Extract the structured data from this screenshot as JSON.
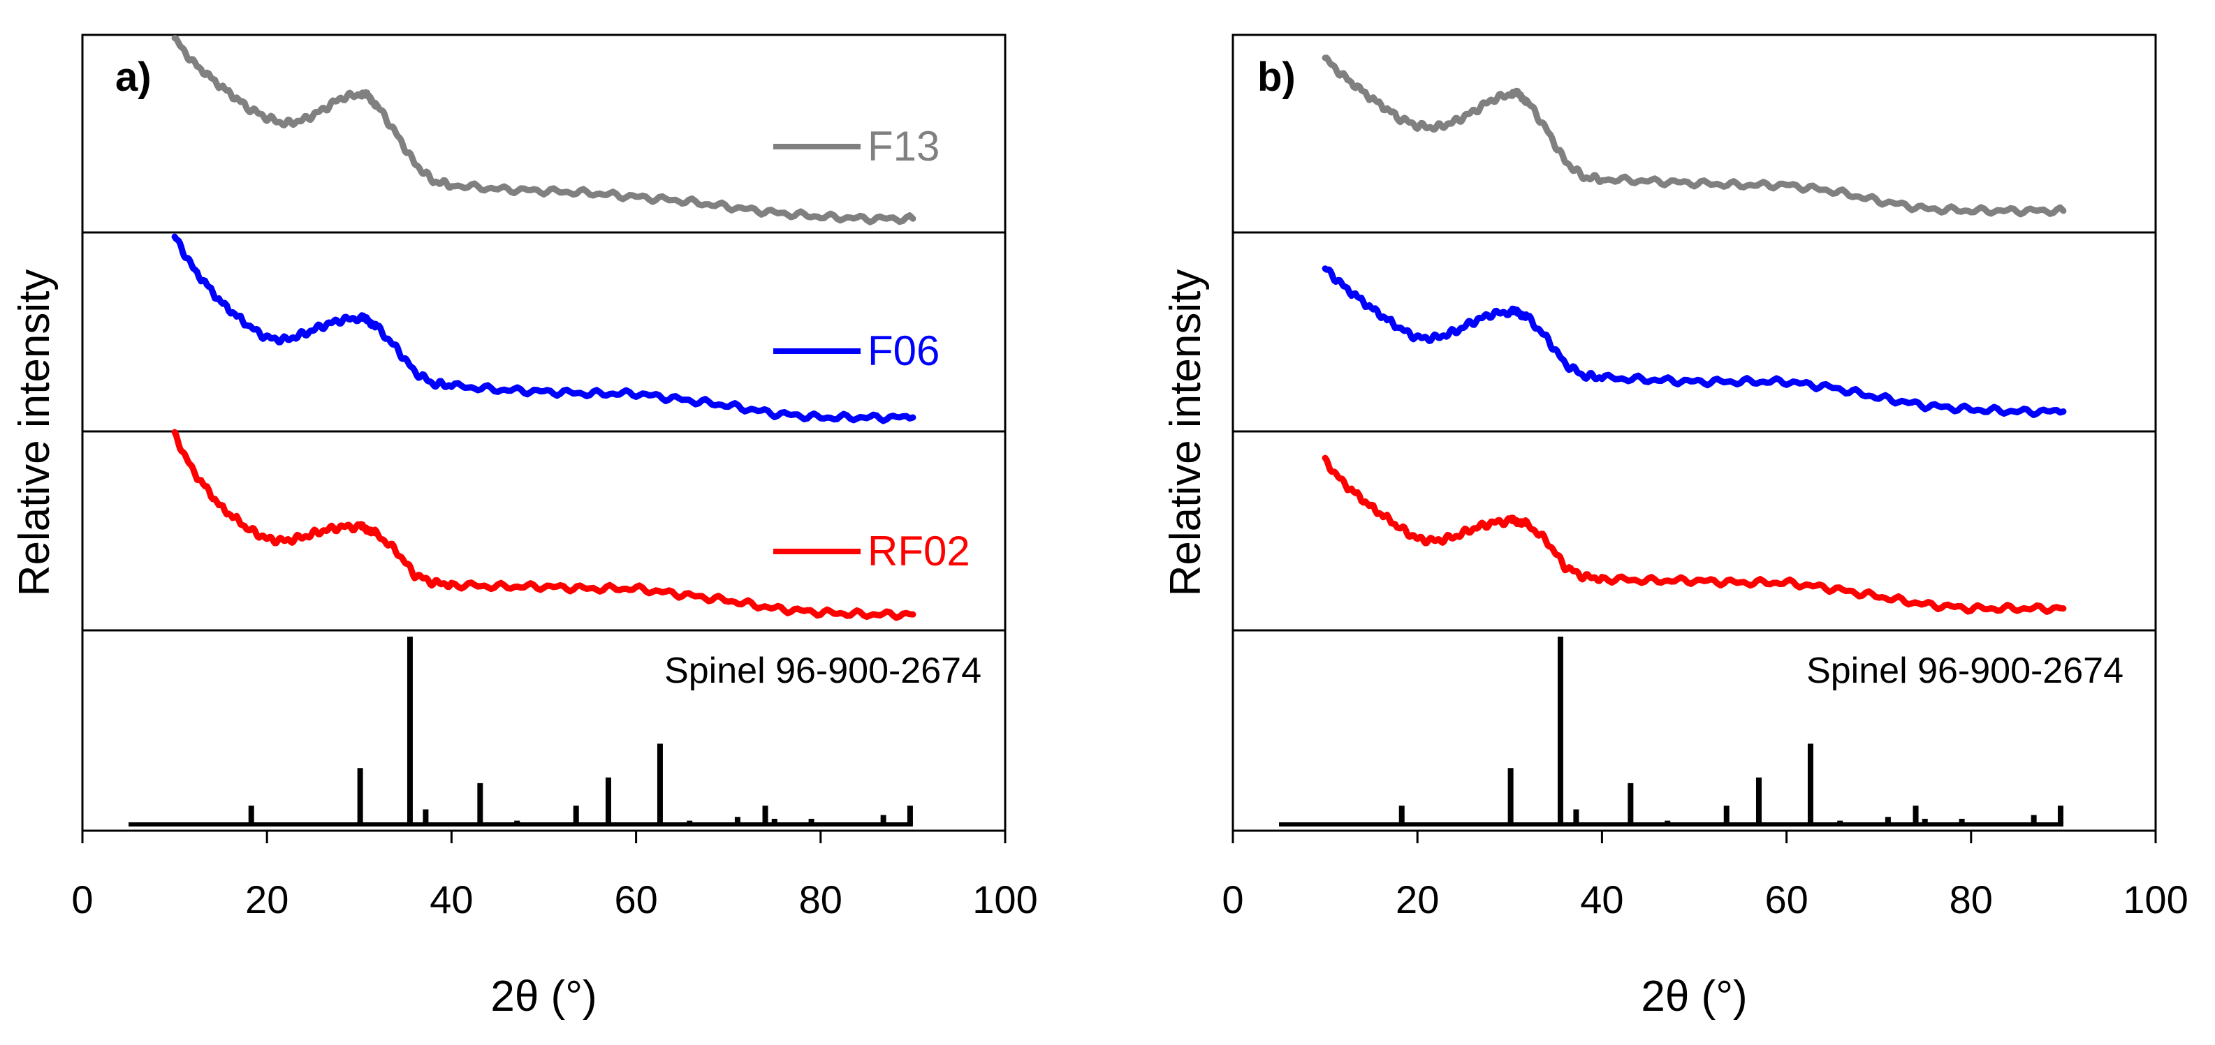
{
  "chart_data": [
    {
      "type": "line",
      "panel_label": "a)",
      "xlabel": "2θ (°)",
      "ylabel": "Relative intensity",
      "xlim": [
        0,
        100
      ],
      "xticks": [
        "0",
        "20",
        "40",
        "60",
        "80",
        "100"
      ],
      "x": [
        10,
        12,
        15,
        18,
        20,
        22,
        24,
        26,
        28,
        30,
        31,
        32,
        34,
        36,
        38,
        40,
        45,
        50,
        55,
        60,
        65,
        70,
        75,
        80,
        85,
        90
      ],
      "series": [
        {
          "name": "F13",
          "color": "#808080",
          "values": [
            0.98,
            0.86,
            0.74,
            0.63,
            0.58,
            0.55,
            0.57,
            0.62,
            0.68,
            0.7,
            0.69,
            0.64,
            0.5,
            0.35,
            0.26,
            0.24,
            0.22,
            0.21,
            0.2,
            0.18,
            0.16,
            0.13,
            0.1,
            0.08,
            0.07,
            0.07
          ]
        },
        {
          "name": "F06",
          "color": "#0000FF",
          "values": [
            0.98,
            0.82,
            0.65,
            0.53,
            0.47,
            0.46,
            0.49,
            0.53,
            0.56,
            0.57,
            0.56,
            0.52,
            0.42,
            0.3,
            0.24,
            0.23,
            0.21,
            0.2,
            0.19,
            0.19,
            0.16,
            0.13,
            0.09,
            0.07,
            0.07,
            0.07
          ]
        },
        {
          "name": "RF02",
          "color": "#FF0000",
          "values": [
            0.98,
            0.8,
            0.62,
            0.51,
            0.46,
            0.45,
            0.47,
            0.5,
            0.52,
            0.52,
            0.51,
            0.48,
            0.4,
            0.28,
            0.24,
            0.23,
            0.22,
            0.22,
            0.21,
            0.21,
            0.18,
            0.15,
            0.11,
            0.09,
            0.08,
            0.08
          ]
        }
      ],
      "reference": {
        "name": "Spinel 96-900-2674",
        "baseline_range": [
          5,
          90
        ],
        "positions": [
          18.3,
          30.1,
          35.5,
          37.2,
          43.1,
          47.1,
          53.5,
          57.0,
          62.6,
          65.8,
          71.0,
          74.0,
          75.0,
          79.0,
          86.8,
          89.7
        ],
        "intensities": [
          10,
          30,
          100,
          8,
          22,
          2,
          10,
          25,
          43,
          2,
          4,
          10,
          3,
          3,
          5,
          10
        ]
      }
    },
    {
      "type": "line",
      "panel_label": "b)",
      "xlabel": "2θ (°)",
      "ylabel": "Relative intensity",
      "xlim": [
        0,
        100
      ],
      "xticks": [
        "0",
        "20",
        "40",
        "60",
        "80",
        "100"
      ],
      "x": [
        10,
        12,
        15,
        18,
        20,
        22,
        24,
        26,
        28,
        30,
        31,
        32,
        34,
        36,
        38,
        40,
        45,
        50,
        55,
        60,
        65,
        70,
        75,
        80,
        85,
        90
      ],
      "series": [
        {
          "name": "F13",
          "color": "#808080",
          "values": [
            0.88,
            0.79,
            0.68,
            0.58,
            0.54,
            0.53,
            0.56,
            0.61,
            0.67,
            0.7,
            0.7,
            0.66,
            0.52,
            0.36,
            0.28,
            0.27,
            0.26,
            0.25,
            0.24,
            0.24,
            0.21,
            0.16,
            0.12,
            0.11,
            0.11,
            0.11
          ]
        },
        {
          "name": "F06",
          "color": "#0000FF",
          "values": [
            0.82,
            0.73,
            0.62,
            0.52,
            0.47,
            0.47,
            0.5,
            0.55,
            0.59,
            0.6,
            0.6,
            0.57,
            0.47,
            0.34,
            0.28,
            0.27,
            0.26,
            0.25,
            0.25,
            0.25,
            0.22,
            0.17,
            0.13,
            0.11,
            0.1,
            0.1
          ]
        },
        {
          "name": "RF02",
          "color": "#FF0000",
          "values": [
            0.85,
            0.74,
            0.62,
            0.52,
            0.46,
            0.45,
            0.47,
            0.51,
            0.54,
            0.55,
            0.55,
            0.53,
            0.45,
            0.32,
            0.27,
            0.26,
            0.25,
            0.25,
            0.24,
            0.24,
            0.21,
            0.17,
            0.13,
            0.11,
            0.11,
            0.11
          ]
        }
      ],
      "reference": {
        "name": "Spinel 96-900-2674",
        "baseline_range": [
          5,
          90
        ],
        "positions": [
          18.3,
          30.1,
          35.5,
          37.2,
          43.1,
          47.1,
          53.5,
          57.0,
          62.6,
          65.8,
          71.0,
          74.0,
          75.0,
          79.0,
          86.8,
          89.7
        ],
        "intensities": [
          10,
          30,
          100,
          8,
          22,
          2,
          10,
          25,
          43,
          2,
          4,
          10,
          3,
          3,
          5,
          10
        ]
      }
    }
  ]
}
